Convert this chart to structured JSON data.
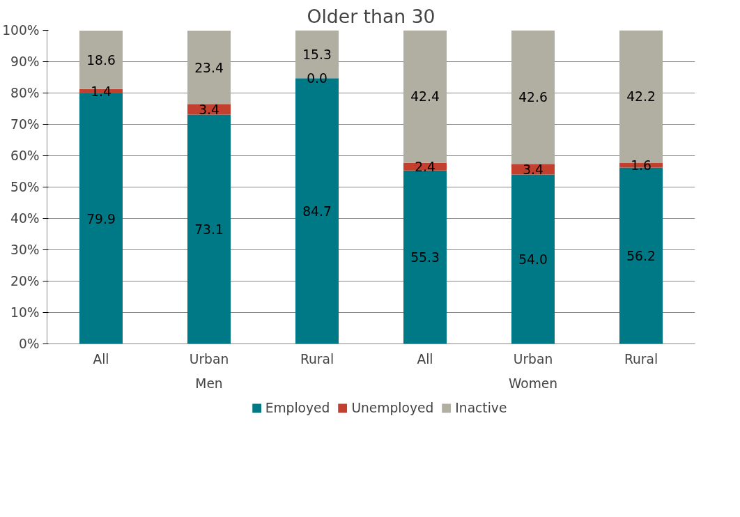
{
  "chart_data": {
    "type": "bar",
    "title": "Older than 30",
    "stacked": true,
    "categories": [
      "All",
      "Urban",
      "Rural",
      "All",
      "Urban",
      "Rural"
    ],
    "annotations": [
      "Men",
      "Women"
    ],
    "series": [
      {
        "name": "Employed",
        "color": "#007987",
        "values": [
          79.9,
          73.1,
          84.7,
          55.3,
          54.0,
          56.2
        ],
        "value_labels": [
          "79.9",
          "73.1",
          "84.7",
          "55.3",
          "54.0",
          "56.2"
        ]
      },
      {
        "name": "Unemployed",
        "color": "#c3402e",
        "values": [
          1.4,
          3.4,
          0.0,
          2.4,
          3.4,
          1.6
        ],
        "value_labels": [
          "1.4",
          "3.4",
          "0.0",
          "2.4",
          "3.4",
          "1.6"
        ]
      },
      {
        "name": "Inactive",
        "color": "#b1aea2",
        "values": [
          18.6,
          23.4,
          15.3,
          42.4,
          42.6,
          42.2
        ],
        "value_labels": [
          "18.6",
          "23.4",
          "15.3",
          "42.4",
          "42.6",
          "42.2"
        ]
      }
    ],
    "ylim": [
      0,
      100
    ],
    "yticks": [
      {
        "value": 0,
        "label": "0%"
      },
      {
        "value": 10,
        "label": "10%"
      },
      {
        "value": 20,
        "label": "20%"
      },
      {
        "value": 30,
        "label": "30%"
      },
      {
        "value": 40,
        "label": "40%"
      },
      {
        "value": 50,
        "label": "50%"
      },
      {
        "value": 60,
        "label": "60%"
      },
      {
        "value": 70,
        "label": "70%"
      },
      {
        "value": 80,
        "label": "80%"
      },
      {
        "value": 90,
        "label": "90%"
      },
      {
        "value": 100,
        "label": "100%"
      }
    ],
    "grid": "y",
    "legend": "bottom"
  }
}
